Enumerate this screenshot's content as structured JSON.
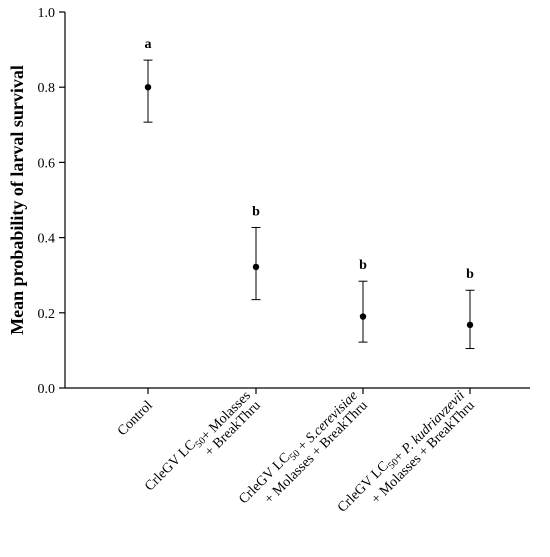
{
  "chart_data": {
    "type": "scatter",
    "title": "",
    "ylabel": "Mean probability of larval survival",
    "xlabel": "",
    "ylim": [
      0,
      1.0
    ],
    "yticks": [
      "0.0",
      "0.2",
      "0.4",
      "0.6",
      "0.8",
      "1.0"
    ],
    "grid": false,
    "categories": [
      {
        "lines": [
          {
            "parts": [
              {
                "t": "Control"
              }
            ]
          }
        ]
      },
      {
        "lines": [
          {
            "parts": [
              {
                "t": "CrleGV LC"
              },
              {
                "t": "50",
                "sub": true
              },
              {
                "t": "+ Molasses"
              }
            ]
          },
          {
            "parts": [
              {
                "t": "+ BreakThru"
              }
            ]
          }
        ]
      },
      {
        "lines": [
          {
            "parts": [
              {
                "t": "CrleGV LC"
              },
              {
                "t": "50",
                "sub": true
              },
              {
                "t": " + "
              },
              {
                "t": "S.cerevisiae",
                "italic": true
              }
            ]
          },
          {
            "parts": [
              {
                "t": "+ Molasses + BreakThru"
              }
            ]
          }
        ]
      },
      {
        "lines": [
          {
            "parts": [
              {
                "t": "CrleGV LC"
              },
              {
                "t": "50",
                "sub": true
              },
              {
                "t": "+ "
              },
              {
                "t": "P. kudriavzevii",
                "italic": true
              }
            ]
          },
          {
            "parts": [
              {
                "t": "+ Molasses + BreakThru"
              }
            ]
          }
        ]
      }
    ],
    "series": [
      {
        "values": [
          0.8,
          0.322,
          0.19,
          0.168
        ],
        "upper": [
          0.872,
          0.427,
          0.284,
          0.26
        ],
        "lower": [
          0.707,
          0.235,
          0.122,
          0.105
        ],
        "letters": [
          "a",
          "b",
          "b",
          "b"
        ]
      }
    ]
  }
}
